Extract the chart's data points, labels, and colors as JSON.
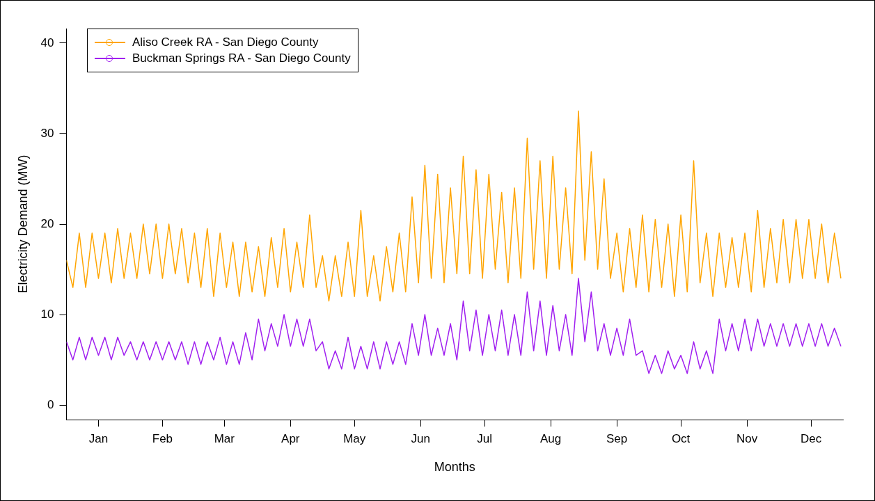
{
  "chart_data": {
    "type": "line",
    "xlabel": "Months",
    "ylabel": "Electricity Demand (MW)",
    "x": [
      "--01-01",
      "--01-04",
      "--01-07",
      "--01-10",
      "--01-13",
      "--01-16",
      "--01-19",
      "--01-22",
      "--01-25",
      "--01-28",
      "--01-31",
      "--02-03",
      "--02-06",
      "--02-09",
      "--02-12",
      "--02-15",
      "--02-18",
      "--02-21",
      "--02-24",
      "--02-27",
      "--03-02",
      "--03-05",
      "--03-08",
      "--03-11",
      "--03-14",
      "--03-17",
      "--03-20",
      "--03-23",
      "--03-26",
      "--03-29",
      "--04-01",
      "--04-04",
      "--04-07",
      "--04-10",
      "--04-13",
      "--04-16",
      "--04-19",
      "--04-22",
      "--04-25",
      "--04-28",
      "--05-01",
      "--05-04",
      "--05-07",
      "--05-10",
      "--05-13",
      "--05-16",
      "--05-19",
      "--05-22",
      "--05-25",
      "--05-28",
      "--05-31",
      "--06-03",
      "--06-06",
      "--06-09",
      "--06-12",
      "--06-15",
      "--06-18",
      "--06-21",
      "--06-24",
      "--06-27",
      "--06-30",
      "--07-03",
      "--07-06",
      "--07-09",
      "--07-12",
      "--07-15",
      "--07-18",
      "--07-21",
      "--07-24",
      "--07-27",
      "--07-30",
      "--08-02",
      "--08-05",
      "--08-08",
      "--08-11",
      "--08-14",
      "--08-17",
      "--08-20",
      "--08-23",
      "--08-26",
      "--08-29",
      "--09-01",
      "--09-04",
      "--09-07",
      "--09-10",
      "--09-13",
      "--09-16",
      "--09-19",
      "--09-22",
      "--09-25",
      "--09-28",
      "--10-01",
      "--10-04",
      "--10-07",
      "--10-10",
      "--10-13",
      "--10-16",
      "--10-19",
      "--10-22",
      "--10-25",
      "--10-28",
      "--10-31",
      "--11-03",
      "--11-06",
      "--11-09",
      "--11-12",
      "--11-15",
      "--11-18",
      "--11-21",
      "--11-24",
      "--11-27",
      "--11-30",
      "--12-03",
      "--12-06",
      "--12-09",
      "--12-12",
      "--12-15",
      "--12-18",
      "--12-21",
      "--12-24",
      "--12-27",
      "--12-30"
    ],
    "series": [
      {
        "name": "Aliso Creek RA - San Diego County",
        "color": "#ffa500",
        "values": [
          16,
          13,
          19,
          13,
          19,
          14,
          19,
          13.5,
          19.5,
          14,
          19,
          14,
          20,
          14.5,
          20,
          14,
          20,
          14.5,
          19.5,
          13.5,
          19,
          13,
          19.5,
          12,
          19,
          13,
          18,
          12,
          18,
          12.5,
          17.5,
          12,
          18.5,
          13,
          19.5,
          12.5,
          18,
          13,
          21,
          13,
          16.5,
          11.5,
          16.5,
          12,
          18,
          12,
          21.5,
          12,
          16.5,
          11.5,
          17.5,
          12.5,
          19,
          12.5,
          23,
          13.5,
          26.5,
          14,
          25.5,
          13.5,
          24,
          14.5,
          27.5,
          14.5,
          26,
          14,
          25.5,
          15,
          23.5,
          13.5,
          24,
          14,
          29.5,
          15,
          27,
          14,
          27.5,
          15,
          24,
          14.5,
          32.5,
          16,
          28,
          15,
          25,
          14,
          19,
          12.5,
          19.5,
          13,
          21,
          12.5,
          20.5,
          13,
          20,
          12,
          21,
          12.5,
          27,
          13.5,
          19,
          12,
          19,
          13,
          18.5,
          13,
          19,
          12.5,
          21.5,
          13,
          19.5,
          13.5,
          20.5,
          13.5,
          20.5,
          14,
          20.5,
          14,
          20,
          13.5,
          19,
          14
        ]
      },
      {
        "name": "Buckman Springs RA - San Diego County",
        "color": "#a020f0",
        "values": [
          7,
          5,
          7.5,
          5,
          7.5,
          5.5,
          7.5,
          5,
          7.5,
          5.5,
          7,
          5,
          7,
          5,
          7,
          5,
          7,
          5,
          7,
          4.5,
          7,
          4.5,
          7,
          5,
          7.5,
          4.5,
          7,
          4.5,
          8,
          5,
          9.5,
          6,
          9,
          6.5,
          10,
          6.5,
          9.5,
          6.5,
          9.5,
          6,
          7,
          4,
          6,
          4,
          7.5,
          4,
          6.5,
          4,
          7,
          4,
          7,
          4.5,
          7,
          4.5,
          9,
          5.5,
          10,
          5.5,
          8.5,
          5.5,
          9,
          5,
          11.5,
          6,
          10.5,
          5.5,
          10,
          6,
          10.5,
          5.5,
          10,
          5.5,
          12.5,
          6,
          11.5,
          5.5,
          11,
          6,
          10,
          5.5,
          14,
          7,
          12.5,
          6,
          9,
          5.5,
          8.5,
          5.5,
          9.5,
          5.5,
          6,
          3.5,
          5.5,
          3.5,
          6,
          4,
          5.5,
          3.5,
          7,
          4,
          6,
          3.5,
          9.5,
          6,
          9,
          6,
          9.5,
          6,
          9.5,
          6.5,
          9,
          6.5,
          9,
          6.5,
          9,
          6.5,
          9,
          6.5,
          9,
          6.5,
          8.5,
          6.5
        ]
      }
    ],
    "xlim": [
      "--01-01",
      "--12-31"
    ],
    "ylim": [
      -1.6,
      41.6
    ],
    "xticks": [
      {
        "value": "--01-16",
        "label": "Jan"
      },
      {
        "value": "--02-15",
        "label": "Feb"
      },
      {
        "value": "--03-16",
        "label": "Mar"
      },
      {
        "value": "--04-16",
        "label": "Apr"
      },
      {
        "value": "--05-16",
        "label": "May"
      },
      {
        "value": "--06-16",
        "label": "Jun"
      },
      {
        "value": "--07-16",
        "label": "Jul"
      },
      {
        "value": "--08-16",
        "label": "Aug"
      },
      {
        "value": "--09-16",
        "label": "Sep"
      },
      {
        "value": "--10-16",
        "label": "Oct"
      },
      {
        "value": "--11-16",
        "label": "Nov"
      },
      {
        "value": "--12-16",
        "label": "Dec"
      }
    ],
    "yticks": [
      0,
      10,
      20,
      30,
      40
    ],
    "grid": false,
    "legend": "top left",
    "marker": "none",
    "line_style": "solid"
  }
}
